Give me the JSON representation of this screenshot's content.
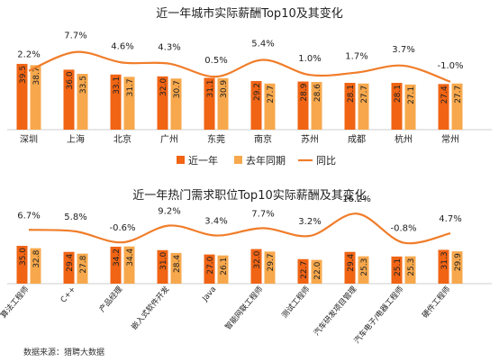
{
  "colors": {
    "current": "#F06414",
    "previous": "#F7A84C",
    "yoy_line": "#F07D2A",
    "text": "#222222",
    "axis": "#cfcfcf"
  },
  "legend": {
    "current": "近一年",
    "previous": "去年同期",
    "yoy": "同比"
  },
  "source": "数据来源：猎聘大数据",
  "chart_data": [
    {
      "type": "bar",
      "title": "近一年城市实际薪酬Top10及其变化",
      "categories": [
        "深圳",
        "上海",
        "北京",
        "广州",
        "东莞",
        "南京",
        "苏州",
        "成都",
        "杭州",
        "常州"
      ],
      "series": [
        {
          "name": "近一年",
          "values": [
            39.5,
            36.0,
            33.1,
            32.0,
            31.1,
            29.2,
            28.9,
            28.1,
            28.1,
            27.4
          ]
        },
        {
          "name": "去年同期",
          "values": [
            38.7,
            33.5,
            31.7,
            30.7,
            30.9,
            27.7,
            28.6,
            27.7,
            27.1,
            27.7
          ]
        },
        {
          "name": "同比",
          "type": "line",
          "values": [
            2.2,
            7.7,
            4.6,
            4.3,
            0.5,
            5.4,
            1.0,
            1.7,
            3.7,
            -1.0
          ],
          "labels": [
            "2.2%",
            "7.7%",
            "4.6%",
            "4.3%",
            "0.5%",
            "5.4%",
            "1.0%",
            "1.7%",
            "3.7%",
            "-1.0%"
          ]
        }
      ],
      "legend_position": "bottom",
      "grid": false
    },
    {
      "type": "bar",
      "title": "近一年热门需求职位Top10实际薪酬及其变化",
      "categories": [
        "算法工程师",
        "C++",
        "产品经理",
        "嵌入式软件开发",
        "Java",
        "智能网联工程师",
        "测试工程师",
        "汽车研发项目管理",
        "汽车电子/电器工程师",
        "硬件工程师"
      ],
      "series": [
        {
          "name": "近一年",
          "values": [
            35.0,
            29.4,
            34.2,
            31.0,
            27.0,
            32.0,
            22.7,
            29.4,
            25.1,
            31.3
          ]
        },
        {
          "name": "去年同期",
          "values": [
            32.8,
            27.8,
            34.4,
            28.4,
            26.1,
            29.7,
            22.0,
            25.3,
            25.3,
            29.9
          ]
        },
        {
          "name": "同比",
          "type": "line",
          "values": [
            6.7,
            5.8,
            -0.6,
            9.2,
            3.4,
            7.7,
            3.2,
            16.2,
            -0.8,
            4.7
          ],
          "labels": [
            "6.7%",
            "5.8%",
            "-0.6%",
            "9.2%",
            "3.4%",
            "7.7%",
            "3.2%",
            "16.2%",
            "-0.8%",
            "4.7%"
          ]
        }
      ],
      "legend_position": "none",
      "grid": false
    }
  ]
}
